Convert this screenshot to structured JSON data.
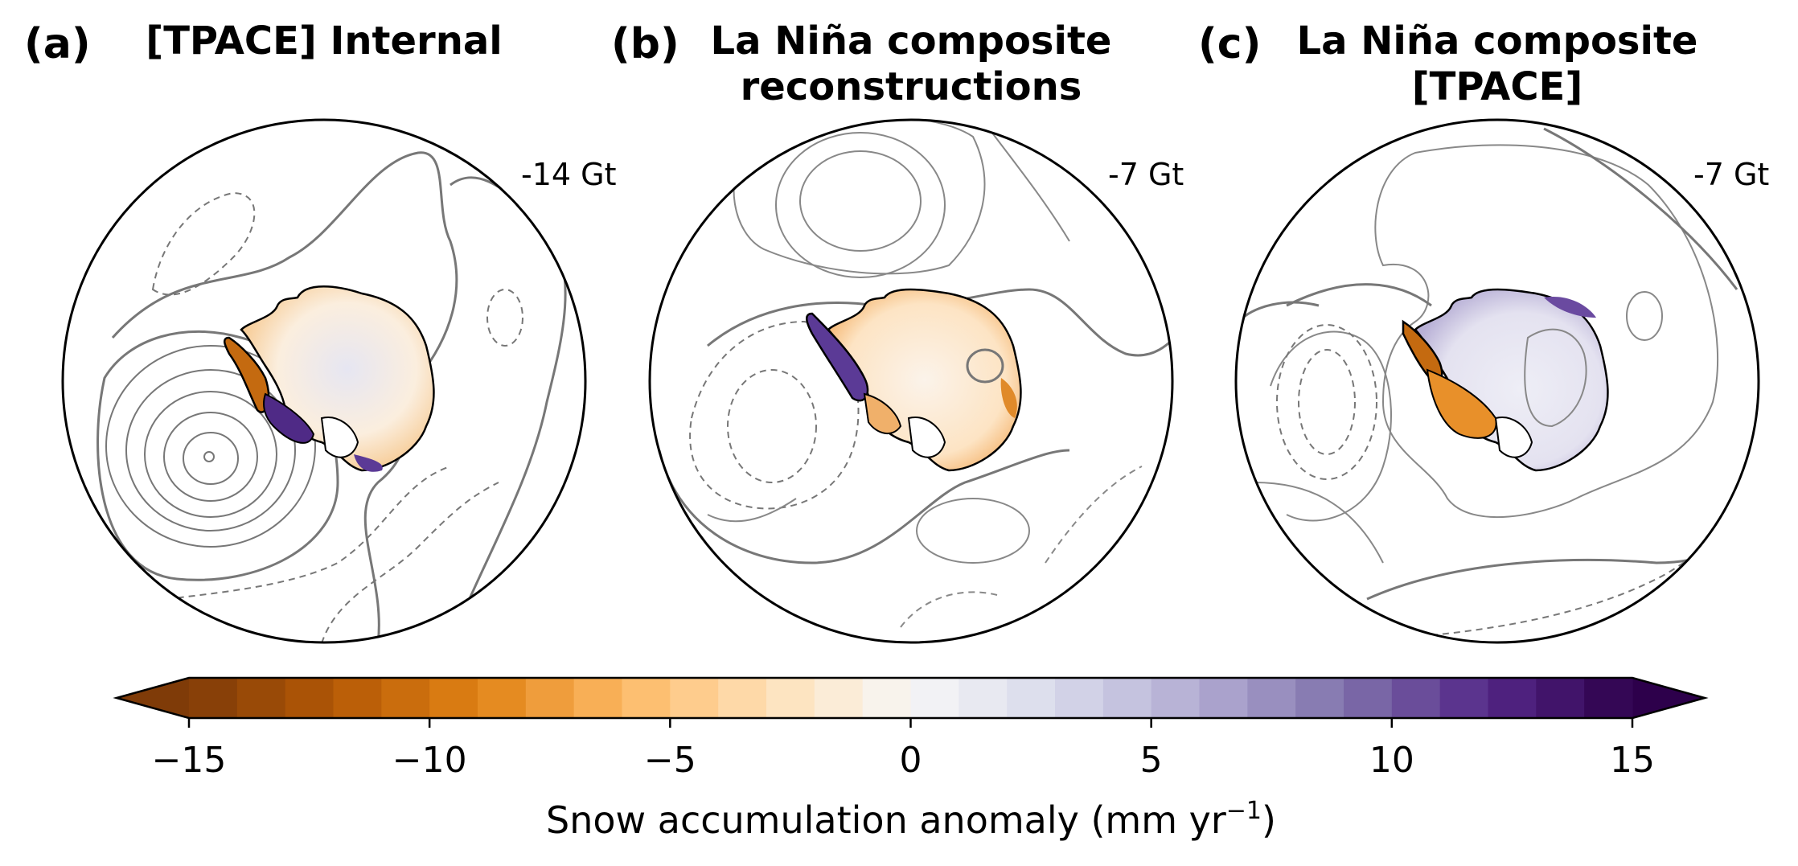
{
  "chart_data": {
    "type": "other",
    "description_type": "polar stereographic maps with filled snow accumulation anomaly and contour lines",
    "panels": [
      {
        "letter": "(a)",
        "title_lines": [
          "[TPACE] Internal"
        ],
        "total": "-14 Gt"
      },
      {
        "letter": "(b)",
        "title_lines": [
          "La Niña composite",
          "reconstructions"
        ],
        "total": "-7 Gt"
      },
      {
        "letter": "(c)",
        "title_lines": [
          "La Niña composite",
          "[TPACE]"
        ],
        "total": "-7 Gt"
      }
    ],
    "colorbar": {
      "label_main": "Snow accumulation anomaly (mm yr",
      "label_sup": "−1",
      "label_close": ")",
      "range": [
        -15,
        15
      ],
      "step": 1,
      "extend": "both",
      "ticks": [
        -15,
        -10,
        -5,
        0,
        5,
        10,
        15
      ],
      "tick_labels": [
        "−15",
        "−10",
        "−5",
        "0",
        "5",
        "10",
        "15"
      ],
      "colormap": "PuOr",
      "colors": [
        "#7f3b08",
        "#b35806",
        "#e08214",
        "#fdb863",
        "#fee0b6",
        "#f7f7f7",
        "#d8daeb",
        "#b2abd2",
        "#8073ac",
        "#542788",
        "#2d004b"
      ]
    }
  }
}
